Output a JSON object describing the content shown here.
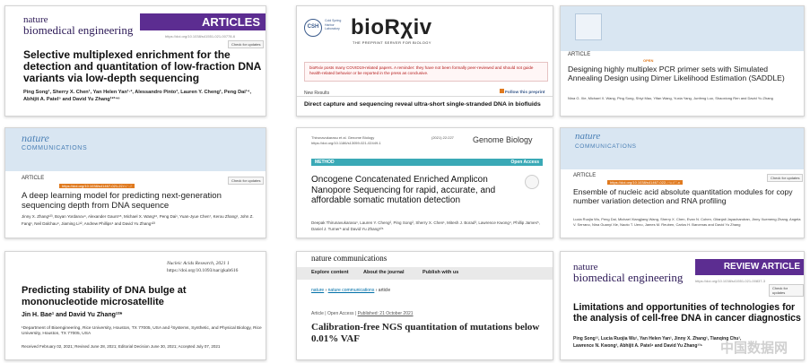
{
  "tiles": {
    "t1": {
      "journal_line1": "nature",
      "journal_line2": "biomedical engineering",
      "section": "ARTICLES",
      "doi": "https://doi.org/10.1038/s41551-021-00778-6",
      "check": "Check for updates",
      "title": "Selective multiplexed enrichment for the detection and quantitation of low-fraction DNA variants via low-depth sequencing",
      "authors": "Ping Song¹, Sherry X. Chen¹, Yan Helen Yan¹·², Alessandro Pinto³, Lauren Y. Cheng¹, Peng Dai¹⁴, Abhijit A. Patel⁵ and David Yu Zhang¹²³⁴⁶"
    },
    "t2": {
      "csh_badge": "CSH",
      "csh_text": "Cold Spring Harbor Laboratory",
      "logo": "bioRχiv",
      "tagline": "THE PREPRINT SERVER FOR BIOLOGY",
      "notice": "bioRxiv posts many COVID19-related papers. A reminder: they have not been formally peer-reviewed and should not guide health-related behavior or be reported in the press as conclusive.",
      "new_results": "New Results",
      "follow": "Follow this preprint",
      "title": "Direct capture and sequencing reveal ultra-short single-stranded DNA in biofluids"
    },
    "t3": {
      "article": "ARTICLE",
      "open": "OPEN",
      "title": "Designing highly multiplex PCR primer sets with Simulated Annealing Design using Dimer Likelihood Estimation (SADDLE)",
      "authors": "Nina G. Xie, Michael X. Wang, Ping Song, Shiyi Mao, Yifan Wang, Yuxia Yang, Junfeng Luo, Shaoxiong Ren and David Yu Zhang"
    },
    "t4": {
      "journal_line1": "nature",
      "journal_line2": "COMMUNICATIONS",
      "article": "ARTICLE",
      "open": "OPEN",
      "doi": "https://doi.org/10.1038/s41467-021-22497-5",
      "check": "Check for updates",
      "title": "A deep learning model for predicting next-generation sequencing depth from DNA sequence",
      "authors": "Jinny X. Zhang¹²³, Boyan Yordanov⁴, Alexander Gaunt⁴⁵, Michael X. Wang¹⁶, Peng Dai¹, Yuan-Jyue Chen⁷, Kerou Zhang¹, John Z. Fang¹, Neil Dalchau⁴, Jiaming Li¹², Andrew Phillips⁴ and David Yu Zhang¹²³"
    },
    "t5": {
      "meta_left": "Thirunavukarasu et al. Genome Biology",
      "meta_right": "(2021) 22:227",
      "meta_doi": "https://doi.org/10.1186/s13059-021-02449-1",
      "journal": "Genome Biology",
      "method": "METHOD",
      "open_access": "Open Access",
      "check": "Check for updates",
      "title": "Oncogene Concatenated Enriched Amplicon Nanopore Sequencing for rapid, accurate, and affordable somatic mutation detection",
      "authors": "Deepak Thirunavukarasu¹, Lauren Y. Cheng², Ping Song², Sherry X. Chen¹, Mitesh J. Borad³, Lawrence Kwong⁴, Phillip James⁵, Daniel J. Turner⁵ and David Yu Zhang¹²⁶"
    },
    "t6": {
      "journal_line1": "nature",
      "journal_line2": "COMMUNICATIONS",
      "article": "ARTICLE",
      "open": "OPEN",
      "doi": "https://doi.org/10.1038/s41467-022-29487-x",
      "check": "Check for updates",
      "title": "Ensemble of nucleic acid absolute quantitation modules for copy number variation detection and RNA profiling",
      "authors": "Lucia Ruojia Wu, Peng Dai, Michael Xiangjiang Wang, Sherry X. Chen, Evan N. Cohen, Gitanjali Jayachandran, Jinny Xuemeng Zhang, Angela V. Serrano, Nina Guanyi Xie, Naoto T. Ueno, James M. Reuben, Carlos H. Barcenas and David Yu Zhang"
    },
    "t7": {
      "journal": "Nucleic Acids Research, 2021 1",
      "doi": "https://doi.org/10.1093/nar/gkab616",
      "title": "Predicting stability of DNA bulge at mononucleotide microsatellite",
      "authors": "Jin H. Bae¹ and David Yu Zhang¹²*",
      "affiliation": "¹Department of Bioengineering, Rice University, Houston, TX 77005, USA and ²Systems, Synthetic, and Physical Biology, Rice University, Houston, TX 77005, USA",
      "received": "Received February 02, 2021; Revised June 28, 2021; Editorial Decision June 30, 2021; Accepted July 07, 2021"
    },
    "t8": {
      "brand": "nature communications",
      "nav": [
        "Explore content",
        "About the journal",
        "Publish with us"
      ],
      "breadcrumb": [
        "nature",
        "nature communications",
        "article"
      ],
      "meta": [
        "Article",
        "Open Access",
        "Published: 21 October 2021"
      ],
      "title": "Calibration-free NGS quantitation of mutations below 0.01% VAF"
    },
    "t9": {
      "journal_line1": "nature",
      "journal_line2": "biomedical engineering",
      "section": "REVIEW ARTICLE",
      "doi": "https://doi.org/10.1038/s41551-021-00837-3",
      "check": "Check for updates",
      "title": "Limitations and opportunities of technologies for the analysis of cell-free DNA in cancer diagnostics",
      "authors": "Ping Song¹², Lucia Ruojia Wu¹, Yan Helen Yan¹, Jinny X. Zhang¹, Tianqing Chu¹, Lawrence N. Kwong³, Abhijit A. Patel⁴ and David Yu Zhang¹²⁵",
      "watermark": "中国数据网"
    }
  },
  "colors": {
    "nbme_purple": "#5c2d91",
    "nc_blue": "#4a7fb5",
    "nc_band": "#d9e6f2",
    "open_orange": "#e07a1f",
    "gb_teal": "#3aa9b6",
    "biorxiv_red": "#b31b1b",
    "nature_nav": "#e9e9e9"
  }
}
